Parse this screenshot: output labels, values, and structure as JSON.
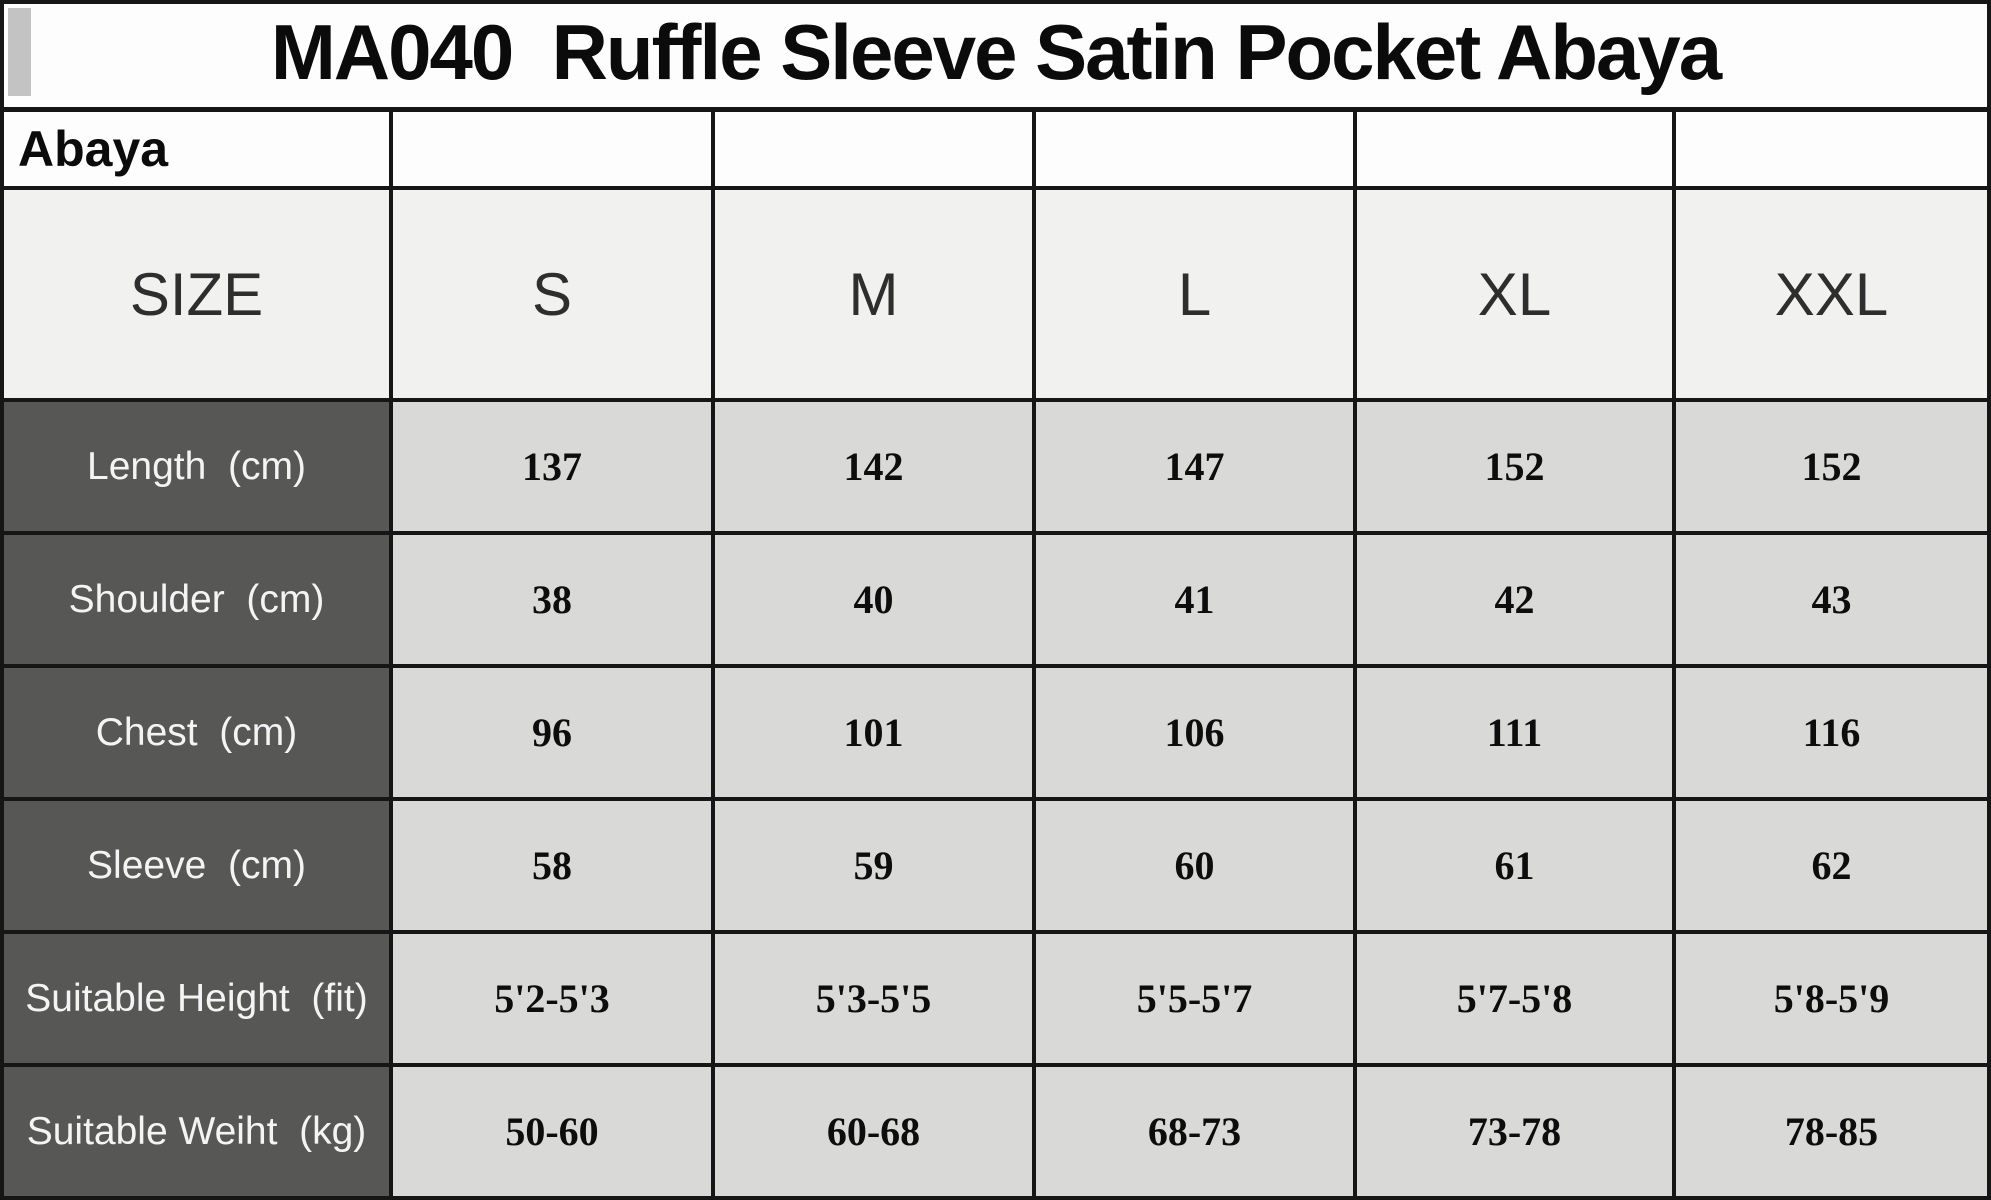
{
  "colors": {
    "border_black": "#161616",
    "title_bg": "#fdfdfd",
    "gray_marker": "#c3c3c3",
    "size_header_bg": "#f1f1ef",
    "row_label_bg": "#575756",
    "row_label_text": "#f4f4f4",
    "value_cell_bg": "#d9d9d7",
    "value_text": "#0d0d0d"
  },
  "chart_data": {
    "type": "table",
    "title": "MA040  Ruffle Sleeve Satin Pocket Abaya",
    "category_label": "Abaya",
    "header": {
      "label": "SIZE",
      "sizes": [
        "S",
        "M",
        "L",
        "XL",
        "XXL"
      ]
    },
    "rows": [
      {
        "label": "Length  (cm)",
        "values": [
          "137",
          "142",
          "147",
          "152",
          "152"
        ]
      },
      {
        "label": "Shoulder  (cm)",
        "values": [
          "38",
          "40",
          "41",
          "42",
          "43"
        ]
      },
      {
        "label": "Chest  (cm)",
        "values": [
          "96",
          "101",
          "106",
          "111",
          "116"
        ]
      },
      {
        "label": "Sleeve  (cm)",
        "values": [
          "58",
          "59",
          "60",
          "61",
          "62"
        ]
      },
      {
        "label": "Suitable Height  (fit)",
        "values": [
          "5'2-5'3",
          "5'3-5'5",
          "5'5-5'7",
          "5'7-5'8",
          "5'8-5'9"
        ]
      },
      {
        "label": "Suitable Weiht  (kg)",
        "values": [
          "50-60",
          "60-68",
          "68-73",
          "73-78",
          "78-85"
        ]
      }
    ]
  }
}
